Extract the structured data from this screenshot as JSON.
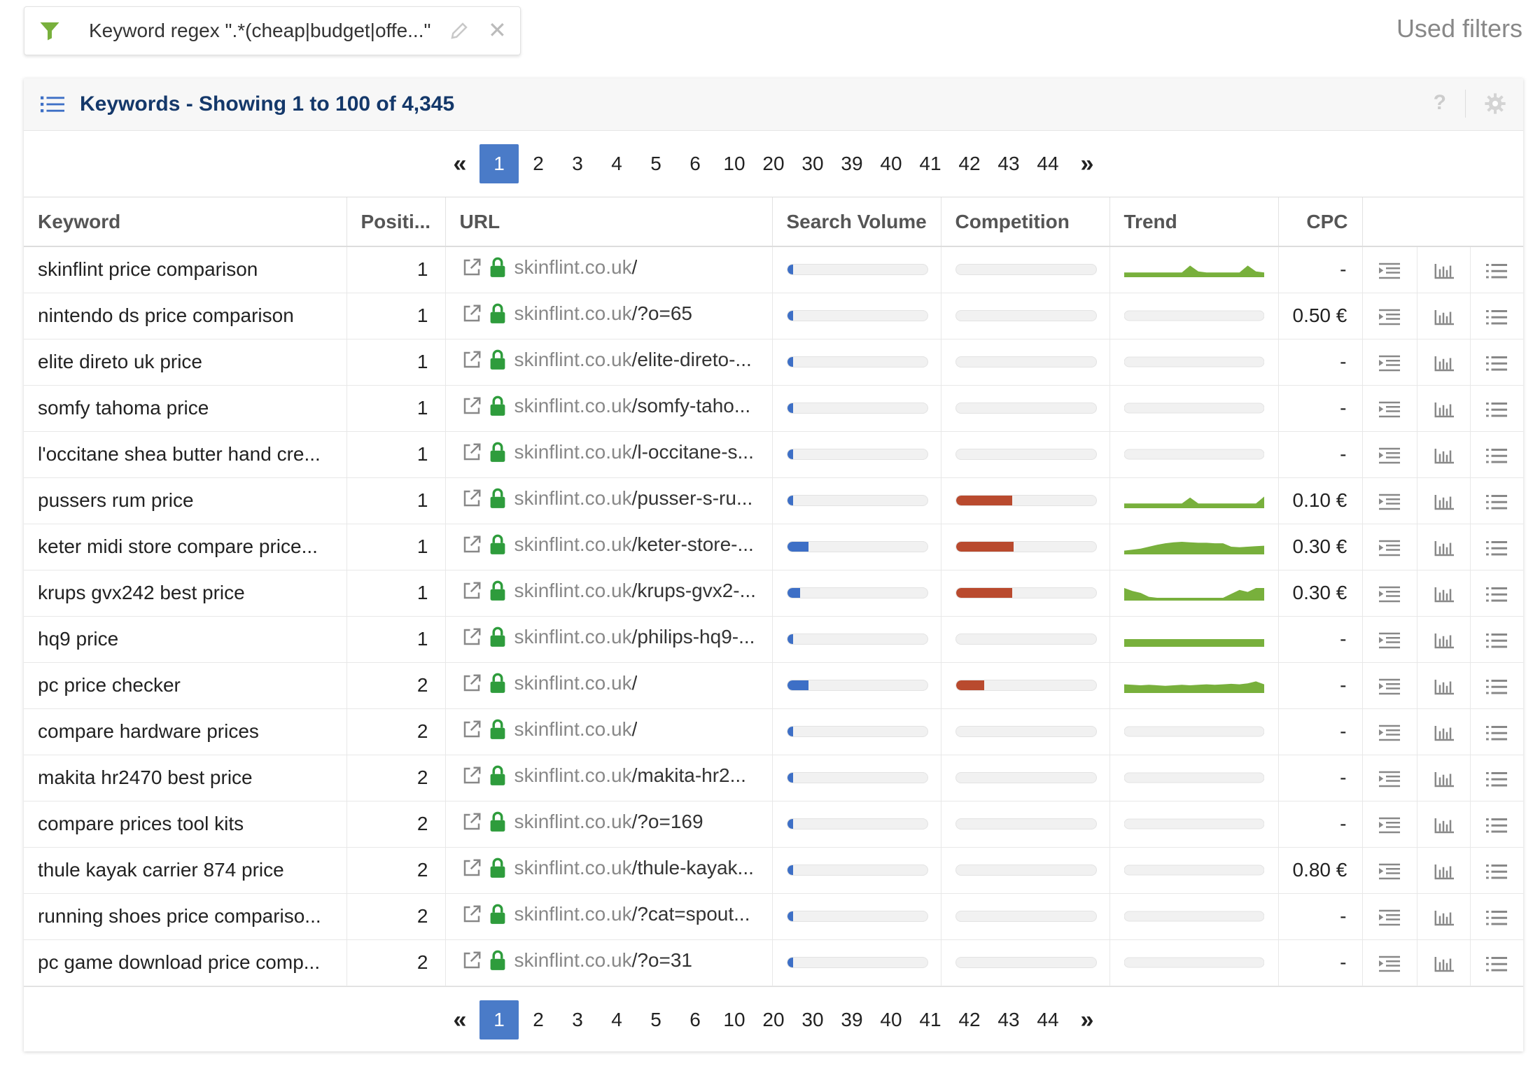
{
  "filter": {
    "text": "Keyword regex \".*(cheap|budget|offe...\"",
    "icon": "funnel-icon",
    "color": "#78b03c"
  },
  "used_filters_label": "Used filters",
  "panel": {
    "title": "Keywords - Showing 1 to 100 of 4,345",
    "help": "?"
  },
  "pagination": {
    "first": "«",
    "last": "»",
    "active": "1",
    "pages": [
      "1",
      "2",
      "3",
      "4",
      "5",
      "6",
      "10",
      "20",
      "30",
      "39",
      "40",
      "41",
      "42",
      "43",
      "44"
    ]
  },
  "columns": {
    "keyword": "Keyword",
    "position": "Positi...",
    "url": "URL",
    "volume": "Search Volume",
    "competition": "Competition",
    "trend": "Trend",
    "cpc": "CPC"
  },
  "colors": {
    "accent": "#4a7bc8",
    "volume_bar": "#3d6fc6",
    "competition_bar": "#b94a2e",
    "trend": "#78b03c",
    "lock": "#2e9c3c",
    "title": "#14386a"
  },
  "rows": [
    {
      "keyword": "skinflint price comparison",
      "position": "1",
      "domain": "skinflint.co.uk",
      "path": "/",
      "volume": 0.04,
      "competition": 0,
      "trend": [
        0.2,
        0.2,
        0.2,
        0.2,
        0.2,
        0.2,
        0.2,
        0.2,
        0.9,
        0.3,
        0.2,
        0.2,
        0.2,
        0.2,
        0.2,
        0.9,
        0.3,
        0.2
      ],
      "cpc": "-"
    },
    {
      "keyword": "nintendo ds price comparison",
      "position": "1",
      "domain": "skinflint.co.uk",
      "path": "/?o=65",
      "volume": 0.04,
      "competition": 0,
      "trend": null,
      "cpc": "0.50 €"
    },
    {
      "keyword": "elite direto uk price",
      "position": "1",
      "domain": "skinflint.co.uk",
      "path": "/elite-direto-...",
      "volume": 0.04,
      "competition": 0,
      "trend": null,
      "cpc": "-"
    },
    {
      "keyword": "somfy tahoma price",
      "position": "1",
      "domain": "skinflint.co.uk",
      "path": "/somfy-taho...",
      "volume": 0.04,
      "competition": 0,
      "trend": null,
      "cpc": "-"
    },
    {
      "keyword": "l'occitane shea butter hand cre...",
      "position": "1",
      "domain": "skinflint.co.uk",
      "path": "/l-occitane-s...",
      "volume": 0.04,
      "competition": 0,
      "trend": null,
      "cpc": "-"
    },
    {
      "keyword": "pussers rum price",
      "position": "1",
      "domain": "skinflint.co.uk",
      "path": "/pusser-s-ru...",
      "volume": 0.04,
      "competition": 0.4,
      "trend": [
        0.2,
        0.2,
        0.2,
        0.2,
        0.2,
        0.2,
        0.2,
        0.2,
        0.8,
        0.2,
        0.2,
        0.2,
        0.2,
        0.2,
        0.2,
        0.2,
        0.2,
        0.9
      ],
      "cpc": "0.10 €"
    },
    {
      "keyword": "keter midi store compare price...",
      "position": "1",
      "domain": "skinflint.co.uk",
      "path": "/keter-store-...",
      "volume": 0.15,
      "competition": 0.41,
      "trend": [
        0.1,
        0.2,
        0.3,
        0.5,
        0.7,
        0.85,
        0.95,
        1.0,
        0.95,
        0.9,
        0.9,
        0.85,
        0.85,
        0.5,
        0.45,
        0.5,
        0.55,
        0.6
      ],
      "cpc": "0.30 €"
    },
    {
      "keyword": "krups gvx242 best price",
      "position": "1",
      "domain": "skinflint.co.uk",
      "path": "/krups-gvx2-...",
      "volume": 0.09,
      "competition": 0.4,
      "trend": [
        1.0,
        0.7,
        0.5,
        0.1,
        0,
        0,
        0,
        0,
        0,
        0,
        0,
        0,
        0,
        0.4,
        0.8,
        0.6,
        1.0,
        1.0
      ],
      "cpc": "0.30 €"
    },
    {
      "keyword": "hq9 price",
      "position": "1",
      "domain": "skinflint.co.uk",
      "path": "/philips-hq9-...",
      "volume": 0.04,
      "competition": 0,
      "trend": [
        0.5,
        0.5,
        0.5,
        0.5,
        0.5,
        0.5,
        0.5,
        0.5,
        0.5,
        0.5,
        0.5,
        0.5,
        0.5,
        0.5,
        0.5,
        0.5,
        0.5,
        0.5
      ],
      "cpc": "-"
    },
    {
      "keyword": "pc price checker",
      "position": "2",
      "domain": "skinflint.co.uk",
      "path": "/",
      "volume": 0.15,
      "competition": 0.2,
      "trend": [
        0.6,
        0.55,
        0.5,
        0.55,
        0.5,
        0.45,
        0.5,
        0.55,
        0.5,
        0.55,
        0.6,
        0.55,
        0.6,
        0.65,
        0.6,
        0.7,
        0.9,
        0.6
      ],
      "cpc": "-"
    },
    {
      "keyword": "compare hardware prices",
      "position": "2",
      "domain": "skinflint.co.uk",
      "path": "/",
      "volume": 0.04,
      "competition": 0,
      "trend": null,
      "cpc": "-"
    },
    {
      "keyword": "makita hr2470 best price",
      "position": "2",
      "domain": "skinflint.co.uk",
      "path": "/makita-hr2...",
      "volume": 0.04,
      "competition": 0,
      "trend": null,
      "cpc": "-"
    },
    {
      "keyword": "compare prices tool kits",
      "position": "2",
      "domain": "skinflint.co.uk",
      "path": "/?o=169",
      "volume": 0.04,
      "competition": 0,
      "trend": null,
      "cpc": "-"
    },
    {
      "keyword": "thule kayak carrier 874 price",
      "position": "2",
      "domain": "skinflint.co.uk",
      "path": "/thule-kayak...",
      "volume": 0.04,
      "competition": 0,
      "trend": null,
      "cpc": "0.80 €"
    },
    {
      "keyword": "running shoes price compariso...",
      "position": "2",
      "domain": "skinflint.co.uk",
      "path": "/?cat=spout...",
      "volume": 0.04,
      "competition": 0,
      "trend": null,
      "cpc": "-"
    },
    {
      "keyword": "pc game download price comp...",
      "position": "2",
      "domain": "skinflint.co.uk",
      "path": "/?o=31",
      "volume": 0.04,
      "competition": 0,
      "trend": null,
      "cpc": "-"
    }
  ]
}
